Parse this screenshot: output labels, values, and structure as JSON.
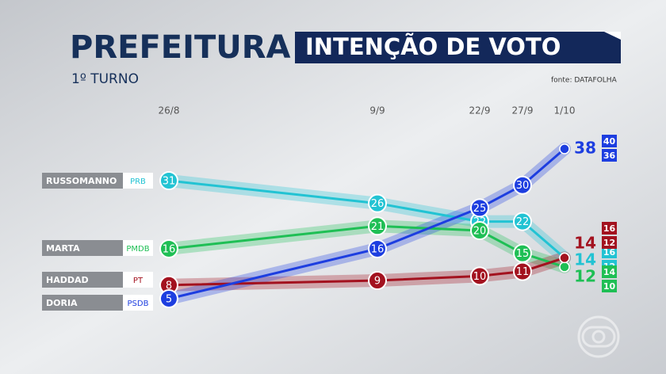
{
  "header": {
    "title": "PREFEITURA",
    "banner": "INTENÇÃO DE VOTO",
    "subtitle": "1º TURNO",
    "source": "fonte: DATAFOLHA"
  },
  "chart_data": {
    "type": "line",
    "categories": [
      "26/8",
      "9/9",
      "22/9",
      "27/9",
      "1/10"
    ],
    "series": [
      {
        "name": "RUSSOMANNO",
        "party": "PRB",
        "color": "#22c3d3",
        "values": [
          31,
          26,
          22,
          22,
          14
        ],
        "range": [
          16,
          12
        ]
      },
      {
        "name": "MARTA",
        "party": "PMDB",
        "color": "#1fbf55",
        "values": [
          16,
          21,
          20,
          15,
          12
        ],
        "range": [
          14,
          10
        ]
      },
      {
        "name": "HADDAD",
        "party": "PT",
        "color": "#a3121f",
        "values": [
          8,
          9,
          10,
          11,
          14
        ],
        "range": [
          16,
          12
        ]
      },
      {
        "name": "DORIA",
        "party": "PSDB",
        "color": "#1d3ee0",
        "values": [
          5,
          16,
          25,
          30,
          38
        ],
        "range": [
          40,
          36
        ]
      }
    ]
  }
}
